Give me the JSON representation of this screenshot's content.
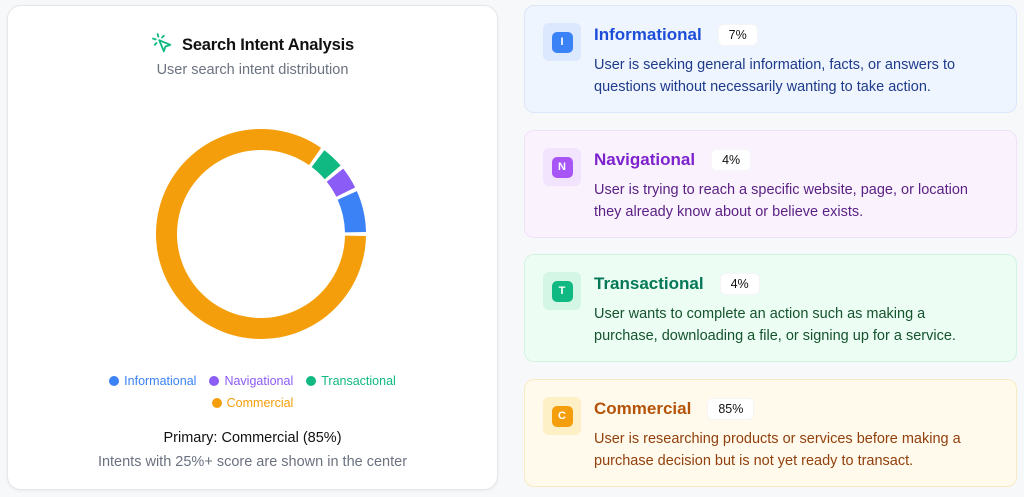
{
  "panel": {
    "title": "Search Intent Analysis",
    "title_icon": "cursor-click-icon",
    "subtitle": "User search intent distribution",
    "primary_text": "Primary: Commercial (85%)",
    "note": "Intents with 25%+ score are shown in the center"
  },
  "legend": [
    {
      "label": "Informational",
      "color": "#3b82f6"
    },
    {
      "label": "Navigational",
      "color": "#8b5cf6"
    },
    {
      "label": "Transactional",
      "color": "#10b981"
    },
    {
      "label": "Commercial",
      "color": "#f59e0b"
    }
  ],
  "intents": [
    {
      "letter": "I",
      "name": "Informational",
      "percent": "7%",
      "description": "User is seeking general information, facts, or answers to questions without necessarily wanting to take action.",
      "color": "#3b82f6"
    },
    {
      "letter": "N",
      "name": "Navigational",
      "percent": "4%",
      "description": "User is trying to reach a specific website, page, or location they already know about or believe exists.",
      "color": "#8b5cf6"
    },
    {
      "letter": "T",
      "name": "Transactional",
      "percent": "4%",
      "description": "User wants to complete an action such as making a purchase, downloading a file, or signing up for a service.",
      "color": "#10b981"
    },
    {
      "letter": "C",
      "name": "Commercial",
      "percent": "85%",
      "description": "User is researching products or services before making a purchase decision but is not yet ready to transact.",
      "color": "#f59e0b"
    }
  ],
  "chart_data": {
    "type": "pie",
    "subtype": "donut",
    "title": "Search Intent Analysis",
    "subtitle": "User search intent distribution",
    "categories": [
      "Informational",
      "Navigational",
      "Transactional",
      "Commercial"
    ],
    "values": [
      7,
      4,
      4,
      85
    ],
    "unit": "%",
    "colors": [
      "#3b82f6",
      "#8b5cf6",
      "#10b981",
      "#f59e0b"
    ],
    "start_angle": "3 o'clock, counter-clockwise",
    "legend_position": "bottom",
    "center_label": "",
    "annotations": [
      "Primary: Commercial (85%)",
      "Intents with 25%+ score are shown in the center"
    ]
  }
}
